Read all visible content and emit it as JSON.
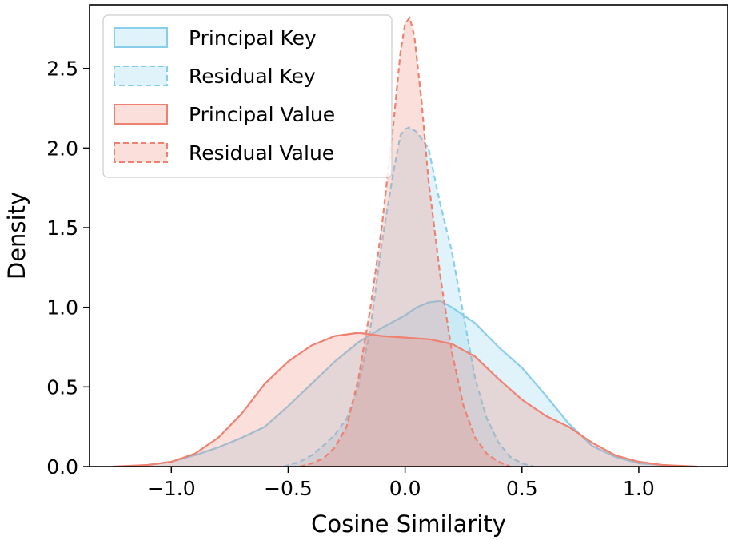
{
  "chart_data": {
    "type": "area",
    "xlabel": "Cosine Similarity",
    "ylabel": "Density",
    "xlim": [
      -1.35,
      1.38
    ],
    "ylim": [
      0,
      2.9
    ],
    "x_ticks": [
      -1.0,
      -0.5,
      0.0,
      0.5,
      1.0
    ],
    "x_tick_labels": [
      "−1.0",
      "−0.5",
      "0.0",
      "0.5",
      "1.0"
    ],
    "y_ticks": [
      0.0,
      0.5,
      1.0,
      1.5,
      2.0,
      2.5
    ],
    "y_tick_labels": [
      "0.0",
      "0.5",
      "1.0",
      "1.5",
      "2.0",
      "2.5"
    ],
    "grid": false,
    "legend_position": "top-left",
    "series": [
      {
        "name": "Principal Key",
        "color": "#87ceeb",
        "line_style": "solid",
        "points": [
          [
            -1.2,
            0.0
          ],
          [
            -1.1,
            0.01
          ],
          [
            -1.0,
            0.03
          ],
          [
            -0.9,
            0.07
          ],
          [
            -0.8,
            0.12
          ],
          [
            -0.7,
            0.18
          ],
          [
            -0.6,
            0.25
          ],
          [
            -0.5,
            0.38
          ],
          [
            -0.4,
            0.52
          ],
          [
            -0.3,
            0.66
          ],
          [
            -0.2,
            0.78
          ],
          [
            -0.1,
            0.87
          ],
          [
            0.0,
            0.95
          ],
          [
            0.05,
            1.0
          ],
          [
            0.1,
            1.03
          ],
          [
            0.15,
            1.04
          ],
          [
            0.2,
            1.0
          ],
          [
            0.3,
            0.9
          ],
          [
            0.4,
            0.75
          ],
          [
            0.5,
            0.62
          ],
          [
            0.6,
            0.45
          ],
          [
            0.7,
            0.27
          ],
          [
            0.8,
            0.13
          ],
          [
            0.9,
            0.06
          ],
          [
            1.0,
            0.02
          ],
          [
            1.1,
            0.01
          ],
          [
            1.2,
            0.0
          ]
        ]
      },
      {
        "name": "Residual Key",
        "color": "#87ceeb",
        "line_style": "dashed",
        "points": [
          [
            -0.52,
            0.0
          ],
          [
            -0.45,
            0.03
          ],
          [
            -0.4,
            0.07
          ],
          [
            -0.35,
            0.13
          ],
          [
            -0.3,
            0.2
          ],
          [
            -0.25,
            0.3
          ],
          [
            -0.2,
            0.5
          ],
          [
            -0.15,
            0.85
          ],
          [
            -0.1,
            1.4
          ],
          [
            -0.05,
            1.85
          ],
          [
            -0.02,
            2.08
          ],
          [
            0.0,
            2.12
          ],
          [
            0.02,
            2.13
          ],
          [
            0.05,
            2.1
          ],
          [
            0.1,
            2.0
          ],
          [
            0.15,
            1.65
          ],
          [
            0.2,
            1.35
          ],
          [
            0.25,
            0.95
          ],
          [
            0.3,
            0.55
          ],
          [
            0.35,
            0.3
          ],
          [
            0.4,
            0.15
          ],
          [
            0.45,
            0.06
          ],
          [
            0.5,
            0.02
          ],
          [
            0.55,
            0.0
          ]
        ]
      },
      {
        "name": "Principal Value",
        "color": "#f08070",
        "line_style": "solid",
        "points": [
          [
            -1.25,
            0.0
          ],
          [
            -1.1,
            0.01
          ],
          [
            -1.0,
            0.03
          ],
          [
            -0.9,
            0.08
          ],
          [
            -0.8,
            0.18
          ],
          [
            -0.7,
            0.33
          ],
          [
            -0.6,
            0.52
          ],
          [
            -0.5,
            0.66
          ],
          [
            -0.4,
            0.76
          ],
          [
            -0.3,
            0.82
          ],
          [
            -0.2,
            0.84
          ],
          [
            -0.1,
            0.82
          ],
          [
            0.0,
            0.81
          ],
          [
            0.1,
            0.8
          ],
          [
            0.2,
            0.77
          ],
          [
            0.3,
            0.69
          ],
          [
            0.4,
            0.55
          ],
          [
            0.5,
            0.42
          ],
          [
            0.6,
            0.32
          ],
          [
            0.7,
            0.25
          ],
          [
            0.8,
            0.15
          ],
          [
            0.9,
            0.07
          ],
          [
            1.0,
            0.03
          ],
          [
            1.1,
            0.01
          ],
          [
            1.25,
            0.0
          ]
        ]
      },
      {
        "name": "Residual Value",
        "color": "#f08070",
        "line_style": "dashed",
        "points": [
          [
            -0.45,
            0.0
          ],
          [
            -0.4,
            0.02
          ],
          [
            -0.35,
            0.05
          ],
          [
            -0.3,
            0.12
          ],
          [
            -0.25,
            0.25
          ],
          [
            -0.2,
            0.55
          ],
          [
            -0.15,
            0.98
          ],
          [
            -0.1,
            1.5
          ],
          [
            -0.05,
            2.15
          ],
          [
            -0.02,
            2.6
          ],
          [
            0.0,
            2.78
          ],
          [
            0.02,
            2.82
          ],
          [
            0.04,
            2.7
          ],
          [
            0.07,
            2.3
          ],
          [
            0.1,
            1.8
          ],
          [
            0.15,
            1.2
          ],
          [
            0.2,
            0.72
          ],
          [
            0.25,
            0.38
          ],
          [
            0.3,
            0.18
          ],
          [
            0.35,
            0.08
          ],
          [
            0.4,
            0.03
          ],
          [
            0.45,
            0.0
          ]
        ]
      }
    ]
  }
}
